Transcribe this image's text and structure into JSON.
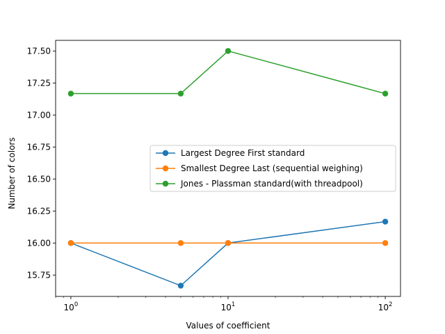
{
  "chart_data": {
    "type": "line",
    "xscale": "log",
    "x": [
      1,
      5,
      10,
      100
    ],
    "xticks": [
      {
        "value": 1,
        "base": "10",
        "exp": "0"
      },
      {
        "value": 10,
        "base": "10",
        "exp": "1"
      },
      {
        "value": 100,
        "base": "10",
        "exp": "2"
      }
    ],
    "xlabel": "Values of coefficient",
    "ylabel": "Number of colors",
    "xlim": [
      0.8,
      125
    ],
    "ylim": [
      15.583,
      17.583
    ],
    "yticks": [
      "15.75",
      "16.00",
      "16.25",
      "16.50",
      "16.75",
      "17.00",
      "17.25",
      "17.50"
    ],
    "grid": false,
    "legend_position": "center-right",
    "series": [
      {
        "name": "Largest Degree First standard",
        "color": "#1f77b4",
        "values": [
          16.0,
          15.667,
          16.0,
          16.167
        ]
      },
      {
        "name": "Smallest Degree Last (sequential weighing)",
        "color": "#ff7f0e",
        "values": [
          16.0,
          16.0,
          16.0,
          16.0
        ]
      },
      {
        "name": "Jones - Plassman standard(with threadpool)",
        "color": "#2ca02c",
        "values": [
          17.167,
          17.167,
          17.5,
          17.167
        ]
      }
    ]
  }
}
